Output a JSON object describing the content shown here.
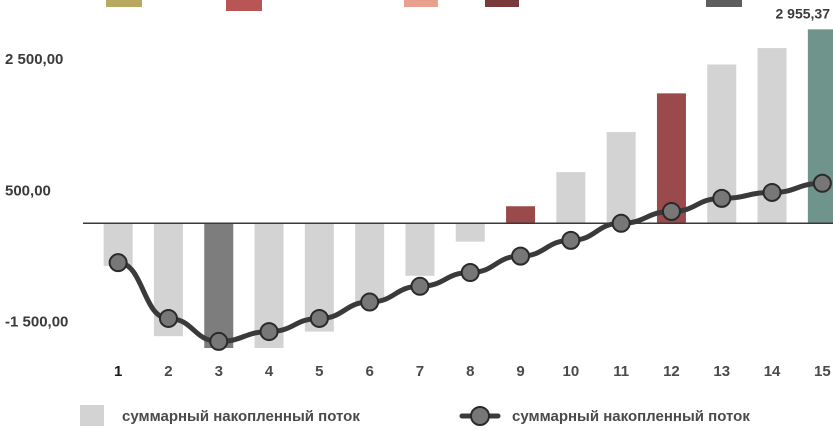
{
  "chart_data": {
    "type": "bar",
    "categories": [
      "1",
      "2",
      "3",
      "4",
      "5",
      "6",
      "7",
      "8",
      "9",
      "10",
      "11",
      "12",
      "13",
      "14",
      "15"
    ],
    "series": [
      {
        "name": "суммарный накопленный поток",
        "kind": "bar",
        "values": [
          -650,
          -1720,
          -1900,
          -1900,
          -1650,
          -1200,
          -800,
          -280,
          260,
          780,
          1390,
          1980,
          2420,
          2670,
          2955.37
        ]
      },
      {
        "name": "суммарный накопленный поток",
        "kind": "line",
        "values": [
          -600,
          -1450,
          -1800,
          -1650,
          -1450,
          -1200,
          -960,
          -750,
          -500,
          -260,
          0,
          180,
          380,
          470,
          610
        ]
      }
    ],
    "bar_colors": [
      "#d3d3d3",
      "#d3d3d3",
      "#7d7d7d",
      "#d3d3d3",
      "#d3d3d3",
      "#d3d3d3",
      "#d3d3d3",
      "#d3d3d3",
      "#9a4a4a",
      "#d3d3d3",
      "#d3d3d3",
      "#9a4a4a",
      "#d3d3d3",
      "#d3d3d3",
      "#6e948b"
    ],
    "y_tick_labels": [
      {
        "value": 2500,
        "label": "2 500,00"
      },
      {
        "value": 500,
        "label": "500,00"
      },
      {
        "value": -1500,
        "label": "-1 500,00"
      }
    ],
    "data_labels": [
      {
        "index": 14,
        "label": "2 955,37"
      }
    ],
    "ylim": [
      -1900,
      3250
    ],
    "grid": false,
    "legend_position": "bottom",
    "top_swatch_colors": [
      "#b9a85f",
      "#b85555",
      "#e9a18f",
      "#7a3a3a",
      "#5e5e5e"
    ],
    "colors": {
      "line": "#3a3a3a",
      "marker_fill": "#777777",
      "zero_line": "#3a3a3a",
      "text": "#3a3a3a"
    }
  }
}
